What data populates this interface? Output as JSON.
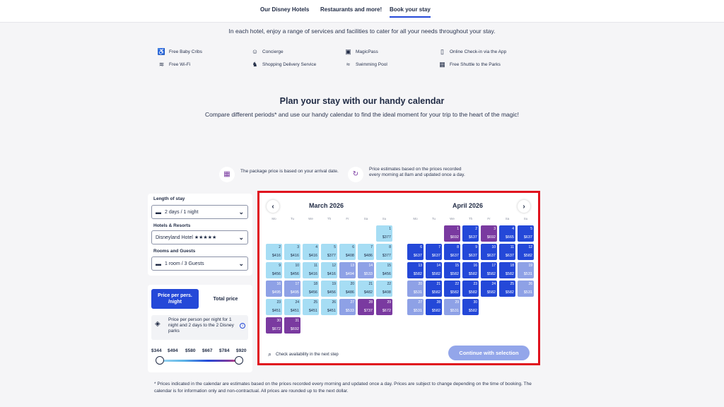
{
  "nav": {
    "tabs": [
      "Our Disney Hotels",
      "Restaurants and more!",
      "Book your stay"
    ],
    "active_index": 2
  },
  "intro_text": "In each hotel, enjoy a range of services and facilities to cater for all your needs throughout your stay.",
  "amenities": [
    {
      "icon": "crib-icon",
      "label": "Free Baby Cribs"
    },
    {
      "icon": "concierge-icon",
      "label": "Concierge"
    },
    {
      "icon": "magicpass-icon",
      "label": "MagicPass"
    },
    {
      "icon": "phone-icon",
      "label": "Online Check-in via the App"
    },
    {
      "icon": "wifi-icon",
      "label": "Free Wi-Fi"
    },
    {
      "icon": "delivery-icon",
      "label": "Shopping Delivery Service"
    },
    {
      "icon": "swimming-icon",
      "label": "Swimming Pool"
    },
    {
      "icon": "bus-icon",
      "label": "Free Shuttle to the Parks"
    }
  ],
  "calendar_section": {
    "title": "Plan your stay with our handy calendar",
    "subtitle": "Compare different periods* and use our handy calendar to find the ideal moment for your trip to the heart of the magic!",
    "info_1": "The package price is based on your arrival date.",
    "info_2": "Price estimates based on the prices recorded every morning at 8am and updated once a day."
  },
  "filters": {
    "length_label": "Length of stay",
    "length_value": "2 days / 1 night",
    "hotel_label": "Hotels & Resorts",
    "hotel_value": "Disneyland Hotel ★★★★★",
    "rooms_label": "Rooms and Guests",
    "rooms_value": "1 room / 3 Guests"
  },
  "pricing": {
    "per_person_label": "Price per pers. /night",
    "total_label": "Total price",
    "note": "Price per person per night for 1 night and 2 days to the 2 Disney parks",
    "scale": [
      "$344",
      "$494",
      "$580",
      "$667",
      "$784",
      "$920"
    ]
  },
  "colors": {
    "light": "#a6ddf4",
    "mid": "#8ea1e6",
    "blue": "#2448d8",
    "purple": "#7a3aa0",
    "accent": "#2448d8",
    "highlight_border": "#e0121e"
  },
  "weekdays": [
    "Mo",
    "Tu",
    "We",
    "Th",
    "Fr",
    "Sa",
    "Su"
  ],
  "months": [
    {
      "title": "March 2026",
      "start_col": 6,
      "days": [
        {
          "d": "1",
          "p": "$377",
          "t": "light"
        },
        {
          "d": "2",
          "p": "$416",
          "t": "light"
        },
        {
          "d": "3",
          "p": "$416",
          "t": "light"
        },
        {
          "d": "4",
          "p": "$416",
          "t": "light"
        },
        {
          "d": "5",
          "p": "$377",
          "t": "light"
        },
        {
          "d": "6",
          "p": "$408",
          "t": "light"
        },
        {
          "d": "7",
          "p": "$486",
          "t": "light"
        },
        {
          "d": "8",
          "p": "$377",
          "t": "light"
        },
        {
          "d": "9",
          "p": "$456",
          "t": "light"
        },
        {
          "d": "10",
          "p": "$456",
          "t": "light"
        },
        {
          "d": "11",
          "p": "$416",
          "t": "light"
        },
        {
          "d": "12",
          "p": "$416",
          "t": "light"
        },
        {
          "d": "13",
          "p": "$494",
          "t": "mid"
        },
        {
          "d": "14",
          "p": "$533",
          "t": "mid"
        },
        {
          "d": "15",
          "p": "$456",
          "t": "light"
        },
        {
          "d": "16",
          "p": "$495",
          "t": "mid"
        },
        {
          "d": "17",
          "p": "$495",
          "t": "mid"
        },
        {
          "d": "18",
          "p": "$456",
          "t": "light"
        },
        {
          "d": "19",
          "p": "$456",
          "t": "light"
        },
        {
          "d": "20",
          "p": "$486",
          "t": "light"
        },
        {
          "d": "21",
          "p": "$482",
          "t": "light"
        },
        {
          "d": "22",
          "p": "$408",
          "t": "light"
        },
        {
          "d": "23",
          "p": "$451",
          "t": "light"
        },
        {
          "d": "24",
          "p": "$451",
          "t": "light"
        },
        {
          "d": "25",
          "p": "$451",
          "t": "light"
        },
        {
          "d": "26",
          "p": "$451",
          "t": "light"
        },
        {
          "d": "27",
          "p": "$533",
          "t": "mid"
        },
        {
          "d": "28",
          "p": "$737",
          "t": "purple"
        },
        {
          "d": "29",
          "p": "$672",
          "t": "purple"
        },
        {
          "d": "30",
          "p": "$672",
          "t": "purple"
        },
        {
          "d": "31",
          "p": "$692",
          "t": "purple"
        }
      ]
    },
    {
      "title": "April 2026",
      "start_col": 2,
      "days": [
        {
          "d": "1",
          "p": "$692",
          "t": "purple"
        },
        {
          "d": "2",
          "p": "$637",
          "t": "blue"
        },
        {
          "d": "3",
          "p": "$692",
          "t": "purple"
        },
        {
          "d": "4",
          "p": "$665",
          "t": "blue"
        },
        {
          "d": "5",
          "p": "$637",
          "t": "blue"
        },
        {
          "d": "6",
          "p": "$637",
          "t": "blue"
        },
        {
          "d": "7",
          "p": "$637",
          "t": "blue"
        },
        {
          "d": "8",
          "p": "$637",
          "t": "blue"
        },
        {
          "d": "9",
          "p": "$637",
          "t": "blue"
        },
        {
          "d": "10",
          "p": "$637",
          "t": "blue"
        },
        {
          "d": "11",
          "p": "$637",
          "t": "blue"
        },
        {
          "d": "12",
          "p": "$582",
          "t": "blue"
        },
        {
          "d": "13",
          "p": "$582",
          "t": "blue"
        },
        {
          "d": "14",
          "p": "$582",
          "t": "blue"
        },
        {
          "d": "15",
          "p": "$582",
          "t": "blue"
        },
        {
          "d": "16",
          "p": "$582",
          "t": "blue"
        },
        {
          "d": "17",
          "p": "$582",
          "t": "blue"
        },
        {
          "d": "18",
          "p": "$582",
          "t": "blue"
        },
        {
          "d": "19",
          "p": "$531",
          "t": "mid"
        },
        {
          "d": "20",
          "p": "$531",
          "t": "mid"
        },
        {
          "d": "21",
          "p": "$582",
          "t": "blue"
        },
        {
          "d": "22",
          "p": "$582",
          "t": "blue"
        },
        {
          "d": "23",
          "p": "$582",
          "t": "blue"
        },
        {
          "d": "24",
          "p": "$582",
          "t": "blue"
        },
        {
          "d": "25",
          "p": "$582",
          "t": "blue"
        },
        {
          "d": "26",
          "p": "$531",
          "t": "mid"
        },
        {
          "d": "27",
          "p": "$531",
          "t": "mid"
        },
        {
          "d": "28",
          "p": "$582",
          "t": "blue"
        },
        {
          "d": "29",
          "p": "$531",
          "t": "mid"
        },
        {
          "d": "30",
          "p": "$582",
          "t": "blue"
        }
      ]
    }
  ],
  "calendar_footer": {
    "availability_text": "Check availability in the next step",
    "continue_label": "Continue with selection",
    "prev_icon": "‹",
    "next_icon": "›"
  },
  "footnote": "* Prices indicated in the calendar are estimates based on the prices recorded every morning and updated once a day. Prices are subject to change depending on the time of booking. The calendar is for information only and non-contractual. All prices are rounded up to the next dollar."
}
